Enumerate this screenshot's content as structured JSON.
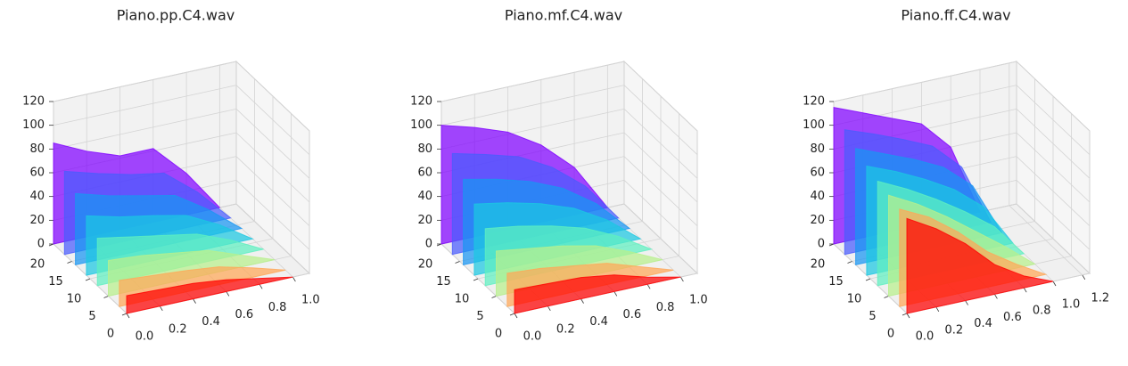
{
  "chart_data": [
    {
      "type": "surface3d",
      "title": "Piano.pp.C4.wav",
      "x": [
        0,
        0.2,
        0.4,
        0.6,
        0.8,
        1.0
      ],
      "layers": [
        {
          "y": 20,
          "color": "#8000ff",
          "values": [
            85,
            72,
            62,
            62,
            35,
            0
          ]
        },
        {
          "y": 17,
          "color": "#4a5cfd",
          "values": [
            70,
            62,
            55,
            50,
            28,
            0
          ]
        },
        {
          "y": 14,
          "color": "#1996f3",
          "values": [
            60,
            52,
            46,
            40,
            22,
            0
          ]
        },
        {
          "y": 11,
          "color": "#1cc8e2",
          "values": [
            50,
            43,
            38,
            32,
            18,
            0
          ]
        },
        {
          "y": 8,
          "color": "#5ef0c0",
          "values": [
            40,
            35,
            30,
            25,
            14,
            0
          ]
        },
        {
          "y": 5,
          "color": "#b8f08c",
          "values": [
            30,
            28,
            24,
            20,
            10,
            0
          ]
        },
        {
          "y": 2,
          "color": "#ffa858",
          "values": [
            22,
            20,
            18,
            15,
            8,
            0
          ]
        },
        {
          "y": 0,
          "color": "#ff0000",
          "values": [
            15,
            14,
            13,
            10,
            5,
            0
          ]
        }
      ],
      "xlim": [
        0,
        1.1
      ],
      "ylim": [
        0,
        20
      ],
      "zlim": [
        0,
        120
      ],
      "xticks": [
        {
          "value": 0,
          "label": "0.0"
        },
        {
          "value": 0.2,
          "label": "0.2"
        },
        {
          "value": 0.4,
          "label": "0.4"
        },
        {
          "value": 0.6,
          "label": "0.6"
        },
        {
          "value": 0.8,
          "label": "0.8"
        },
        {
          "value": 1.0,
          "label": "1.0"
        }
      ],
      "yticks": [
        0,
        5,
        10,
        15,
        20
      ],
      "zticks": [
        0,
        20,
        40,
        60,
        80,
        100,
        120
      ]
    },
    {
      "type": "surface3d",
      "title": "Piano.mf.C4.wav",
      "x": [
        0,
        0.2,
        0.4,
        0.6,
        0.8,
        1.0
      ],
      "layers": [
        {
          "y": 20,
          "color": "#8000ff",
          "values": [
            100,
            92,
            82,
            65,
            40,
            0
          ]
        },
        {
          "y": 17,
          "color": "#4a5cfd",
          "values": [
            85,
            78,
            70,
            55,
            33,
            0
          ]
        },
        {
          "y": 14,
          "color": "#1996f3",
          "values": [
            72,
            66,
            58,
            46,
            27,
            0
          ]
        },
        {
          "y": 11,
          "color": "#1cc8e2",
          "values": [
            60,
            55,
            48,
            38,
            22,
            0
          ]
        },
        {
          "y": 8,
          "color": "#5ef0c0",
          "values": [
            48,
            44,
            38,
            30,
            17,
            0
          ]
        },
        {
          "y": 5,
          "color": "#b8f08c",
          "values": [
            38,
            34,
            30,
            24,
            13,
            0
          ]
        },
        {
          "y": 2,
          "color": "#ffa858",
          "values": [
            28,
            26,
            22,
            18,
            9,
            0
          ]
        },
        {
          "y": 0,
          "color": "#ff0000",
          "values": [
            20,
            19,
            18,
            14,
            6,
            0
          ]
        }
      ],
      "xlim": [
        0,
        1.1
      ],
      "ylim": [
        0,
        20
      ],
      "zlim": [
        0,
        120
      ],
      "xticks": [
        {
          "value": 0,
          "label": "0.0"
        },
        {
          "value": 0.2,
          "label": "0.2"
        },
        {
          "value": 0.4,
          "label": "0.4"
        },
        {
          "value": 0.6,
          "label": "0.6"
        },
        {
          "value": 0.8,
          "label": "0.8"
        },
        {
          "value": 1.0,
          "label": "1.0"
        }
      ],
      "yticks": [
        0,
        5,
        10,
        15,
        20
      ],
      "zticks": [
        0,
        20,
        40,
        60,
        80,
        100,
        120
      ]
    },
    {
      "type": "surface3d",
      "title": "Piano.ff.C4.wav",
      "x": [
        0,
        0.2,
        0.4,
        0.6,
        0.8,
        1.0
      ],
      "layers": [
        {
          "y": 20,
          "color": "#8000ff",
          "values": [
            115,
            105,
            95,
            85,
            60,
            0
          ]
        },
        {
          "y": 17,
          "color": "#4a5cfd",
          "values": [
            105,
            96,
            86,
            75,
            52,
            0
          ]
        },
        {
          "y": 14,
          "color": "#1996f3",
          "values": [
            98,
            88,
            78,
            66,
            45,
            0
          ]
        },
        {
          "y": 11,
          "color": "#1cc8e2",
          "values": [
            92,
            82,
            70,
            56,
            36,
            0
          ]
        },
        {
          "y": 8,
          "color": "#5ef0c0",
          "values": [
            88,
            76,
            62,
            46,
            28,
            0
          ]
        },
        {
          "y": 5,
          "color": "#b8f08c",
          "values": [
            85,
            72,
            56,
            38,
            20,
            0
          ]
        },
        {
          "y": 2,
          "color": "#ffa858",
          "values": [
            82,
            70,
            52,
            30,
            14,
            0
          ]
        },
        {
          "y": 0,
          "color": "#ff0000",
          "values": [
            80,
            66,
            48,
            25,
            10,
            0
          ]
        }
      ],
      "xlim": [
        0,
        1.25
      ],
      "ylim": [
        0,
        20
      ],
      "zlim": [
        0,
        120
      ],
      "xticks": [
        {
          "value": 0,
          "label": "0.0"
        },
        {
          "value": 0.2,
          "label": "0.2"
        },
        {
          "value": 0.4,
          "label": "0.4"
        },
        {
          "value": 0.6,
          "label": "0.6"
        },
        {
          "value": 0.8,
          "label": "0.8"
        },
        {
          "value": 1.0,
          "label": "1.0"
        },
        {
          "value": 1.2,
          "label": "1.2"
        }
      ],
      "yticks": [
        0,
        5,
        10,
        15,
        20
      ],
      "zticks": [
        0,
        20,
        40,
        60,
        80,
        100,
        120
      ]
    }
  ]
}
